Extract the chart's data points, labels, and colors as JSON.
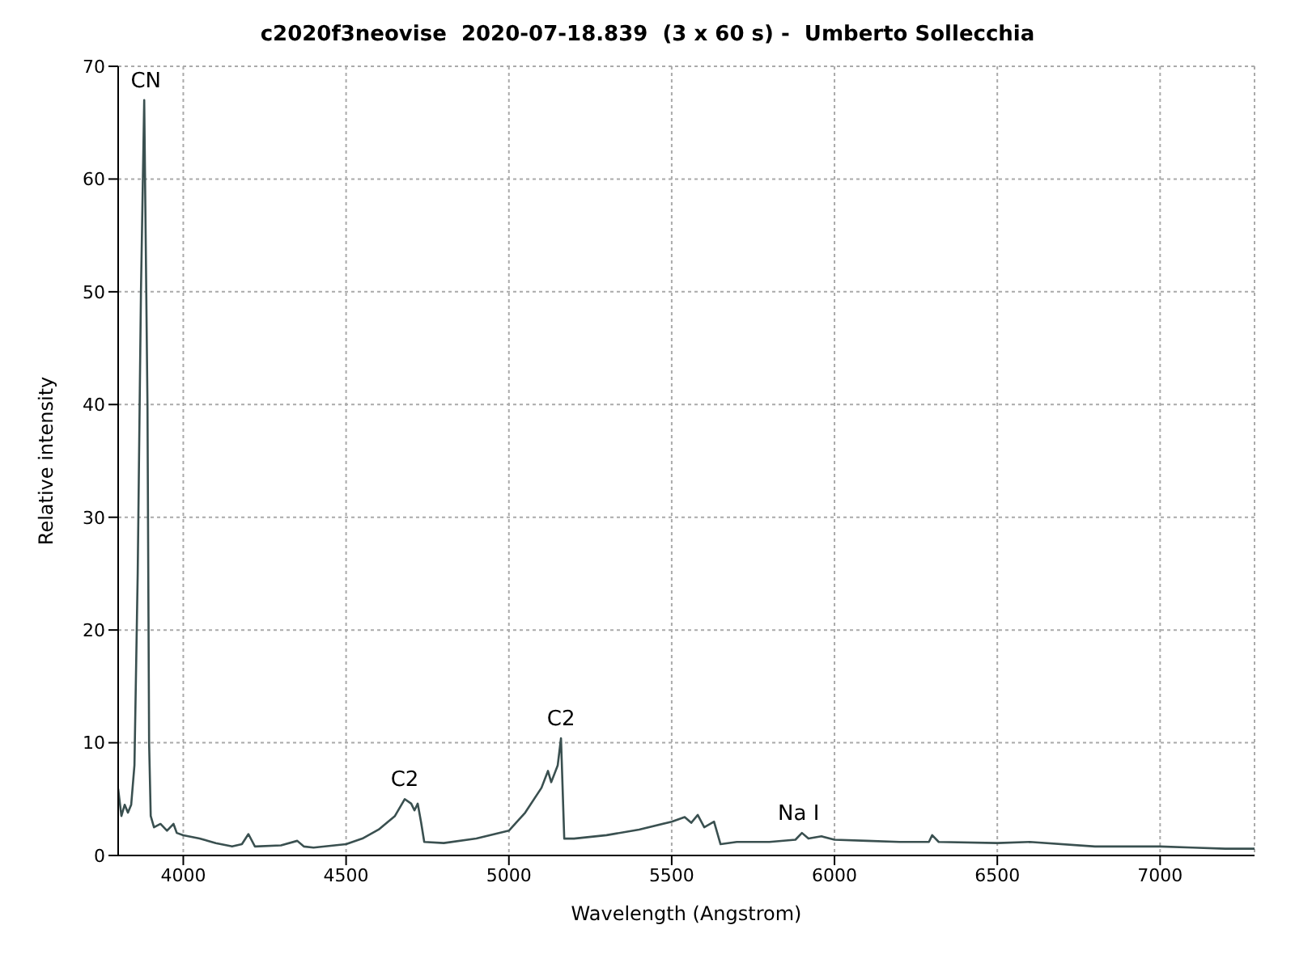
{
  "chart_data": {
    "type": "line",
    "title": "c2020f3neovise  2020-07-18.839  (3 x 60 s) -  Umberto Sollecchia",
    "xlabel": "Wavelength (Angstrom)",
    "ylabel": "Relative intensity",
    "x": [
      3800,
      3810,
      3820,
      3830,
      3840,
      3850,
      3860,
      3870,
      3880,
      3890,
      3895,
      3900,
      3910,
      3930,
      3950,
      3970,
      3980,
      4000,
      4050,
      4100,
      4150,
      4180,
      4200,
      4220,
      4300,
      4350,
      4370,
      4400,
      4500,
      4550,
      4600,
      4650,
      4680,
      4700,
      4710,
      4720,
      4730,
      4740,
      4800,
      4900,
      5000,
      5050,
      5100,
      5120,
      5130,
      5150,
      5160,
      5170,
      5200,
      5300,
      5400,
      5500,
      5540,
      5560,
      5580,
      5600,
      5630,
      5650,
      5700,
      5800,
      5880,
      5900,
      5920,
      5960,
      6000,
      6100,
      6200,
      6290,
      6300,
      6320,
      6500,
      6600,
      6800,
      7000,
      7100,
      7200,
      7290
    ],
    "series": [
      {
        "color": "#3a5050",
        "values": [
          5.9,
          3.5,
          4.5,
          3.8,
          4.5,
          8,
          25,
          50,
          67,
          40,
          10,
          3.5,
          2.5,
          2.8,
          2.2,
          2.8,
          2,
          1.8,
          1.5,
          1.1,
          0.8,
          1,
          1.9,
          0.8,
          0.9,
          1.3,
          0.8,
          0.7,
          1,
          1.5,
          2.3,
          3.5,
          5,
          4.6,
          4,
          4.6,
          3,
          1.2,
          1.1,
          1.5,
          2.2,
          3.8,
          6,
          7.5,
          6.5,
          8,
          10.4,
          1.5,
          1.5,
          1.8,
          2.3,
          3,
          3.4,
          2.9,
          3.6,
          2.5,
          3,
          1,
          1.2,
          1.2,
          1.4,
          2,
          1.5,
          1.7,
          1.4,
          1.3,
          1.2,
          1.2,
          1.8,
          1.2,
          1.1,
          1.2,
          0.8,
          0.8,
          0.7,
          0.6,
          0.6
        ]
      }
    ],
    "xlim": [
      3800,
      7290
    ],
    "xticks": [
      4000,
      4500,
      5000,
      5500,
      6000,
      6500,
      7000
    ],
    "ylim": [
      0,
      70
    ],
    "yticks": [
      0,
      10,
      20,
      30,
      40,
      50,
      60,
      70
    ],
    "grid": true,
    "marker": "none",
    "line_style": "solid",
    "annotations": [
      {
        "text": "CN",
        "x": 3885,
        "y": 67
      },
      {
        "text": "C2",
        "x": 4680,
        "y": 5
      },
      {
        "text": "C2",
        "x": 5160,
        "y": 10.4
      },
      {
        "text": "Na I",
        "x": 5890,
        "y": 2
      }
    ]
  }
}
